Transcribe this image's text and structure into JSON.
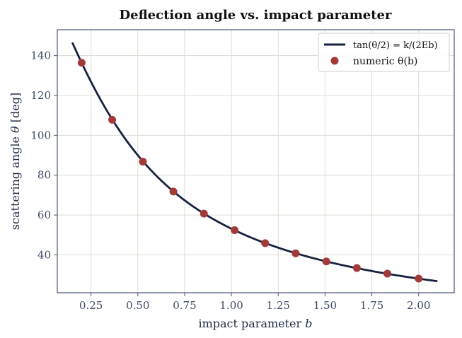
{
  "chart_data": {
    "type": "line",
    "title": "Deflection angle vs. impact parameter",
    "xlabel": "impact parameter  b",
    "ylabel": "scattering angle  θ  [deg]",
    "xlim": [
      0.07,
      2.19
    ],
    "ylim": [
      21,
      153
    ],
    "xticks": [
      0.25,
      0.5,
      0.75,
      1.0,
      1.25,
      1.5,
      1.75,
      2.0
    ],
    "xtick_labels": [
      "0.25",
      "0.50",
      "0.75",
      "1.00",
      "1.25",
      "1.50",
      "1.75",
      "2.00"
    ],
    "yticks": [
      40,
      60,
      80,
      100,
      120,
      140
    ],
    "ytick_labels": [
      "40",
      "60",
      "80",
      "100",
      "120",
      "140"
    ],
    "grid": true,
    "legend_position": "top-right",
    "series": [
      {
        "name": "tan(θ/2) = k/(2Eb)",
        "kind": "line",
        "color": "#17213f",
        "k_over_2E": 0.5,
        "x_range": [
          0.15,
          2.1
        ]
      },
      {
        "name": "numeric θ(b)",
        "kind": "scatter",
        "color": "#a33a3a",
        "x": [
          0.2,
          0.363,
          0.527,
          0.69,
          0.853,
          1.017,
          1.18,
          1.343,
          1.507,
          1.67,
          1.833,
          2.0
        ],
        "y": [
          136.4,
          107.8,
          86.8,
          71.8,
          60.7,
          52.4,
          45.9,
          40.8,
          36.7,
          33.4,
          30.6,
          28.1
        ]
      }
    ]
  }
}
